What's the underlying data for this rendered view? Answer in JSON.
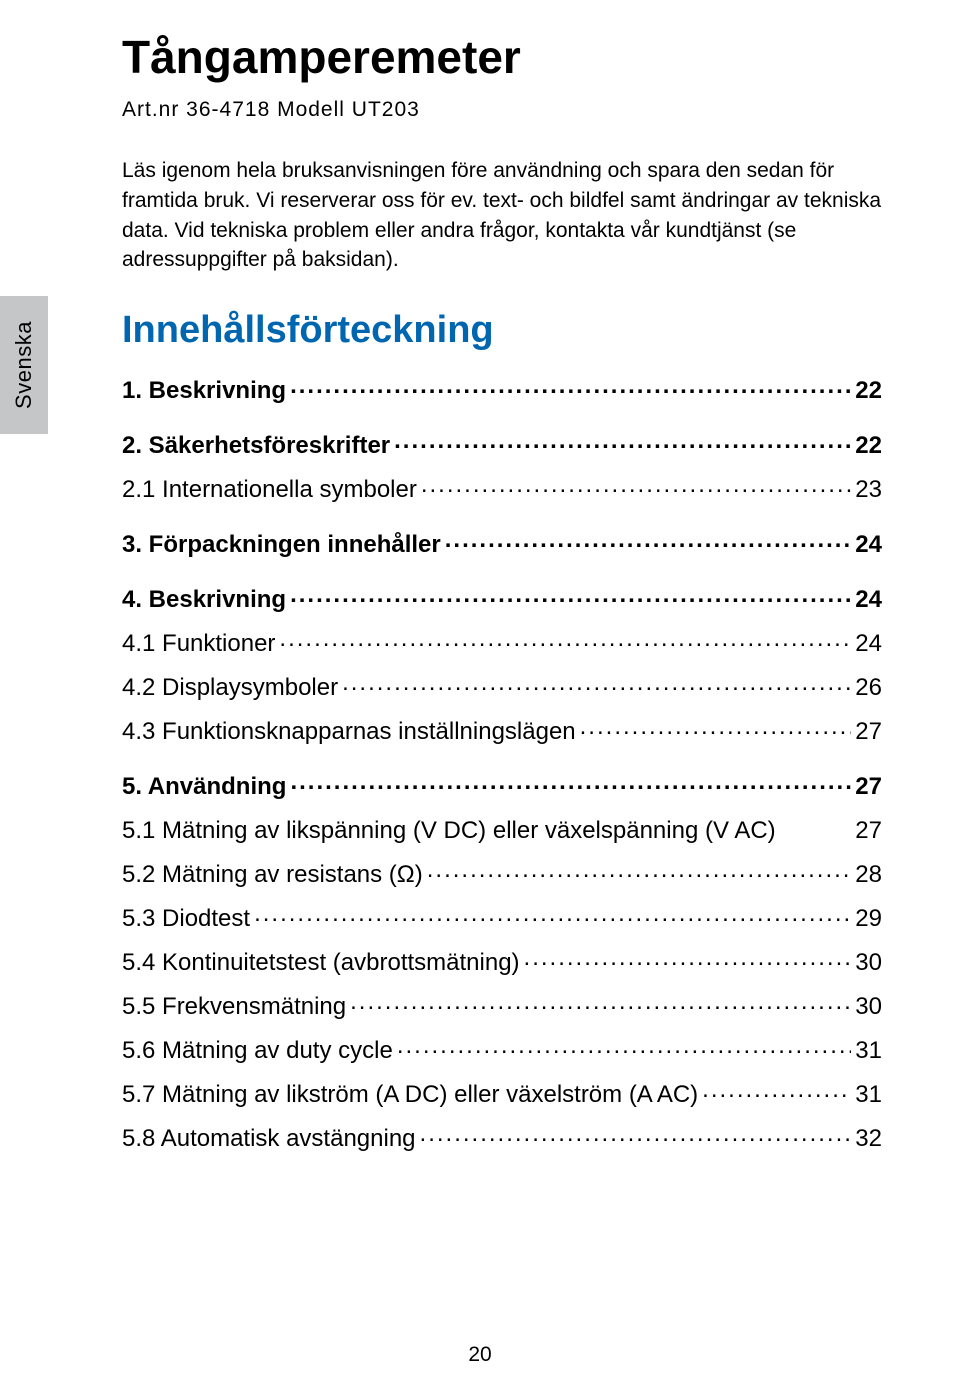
{
  "language_tab": "Svenska",
  "title": "Tångamperemeter",
  "subtitle": "Art.nr 36-4718   Modell  UT203",
  "intro": "Läs igenom hela bruksanvisningen före användning och spara den sedan för framtida bruk. Vi reserverar oss för ev. text- och bildfel samt ändringar av tekniska data. Vid tekniska problem eller andra frågor, kontakta vår kundtjänst (se adressuppgifter på baksidan).",
  "toc_heading": "Innehållsförteckning",
  "toc": [
    {
      "type": "main",
      "label": "1. Beskrivning",
      "page": "22"
    },
    {
      "type": "main",
      "spaced": true,
      "label": "2. Säkerhetsföreskrifter",
      "page": "22"
    },
    {
      "type": "sub",
      "label": "2.1 Internationella symboler",
      "page": "23"
    },
    {
      "type": "main",
      "spaced": true,
      "label": "3. Förpackningen innehåller",
      "page": "24"
    },
    {
      "type": "main",
      "spaced": true,
      "label": "4. Beskrivning",
      "page": "24"
    },
    {
      "type": "sub",
      "label": "4.1 Funktioner",
      "page": "24"
    },
    {
      "type": "sub",
      "label": "4.2 Displaysymboler",
      "page": "26"
    },
    {
      "type": "sub",
      "label": "4.3 Funktionsknapparnas inställningslägen",
      "page": "27"
    },
    {
      "type": "main",
      "spaced": true,
      "label": "5. Användning",
      "page": "27"
    },
    {
      "type": "sub",
      "nodots": true,
      "label": "5.1 Mätning av likspänning (V DC) eller växelspänning (V AC)",
      "page": "27"
    },
    {
      "type": "sub",
      "label": "5.2 Mätning av resistans (Ω)",
      "page": "28"
    },
    {
      "type": "sub",
      "label": "5.3 Diodtest",
      "page": "29"
    },
    {
      "type": "sub",
      "label": "5.4 Kontinuitetstest (avbrottsmätning)",
      "page": "30"
    },
    {
      "type": "sub",
      "label": "5.5 Frekvensmätning",
      "page": "30"
    },
    {
      "type": "sub",
      "label": "5.6 Mätning av duty cycle",
      "page": "31"
    },
    {
      "type": "sub",
      "label": "5.7 Mätning av likström (A DC) eller växelström (A AC)",
      "page": "31"
    },
    {
      "type": "sub",
      "label": "5.8 Automatisk avstängning",
      "page": "32"
    }
  ],
  "page_number": "20",
  "colors": {
    "heading_blue": "#0066b0",
    "tab_gray": "#c4c6c8",
    "text": "#000000",
    "background": "#ffffff"
  }
}
